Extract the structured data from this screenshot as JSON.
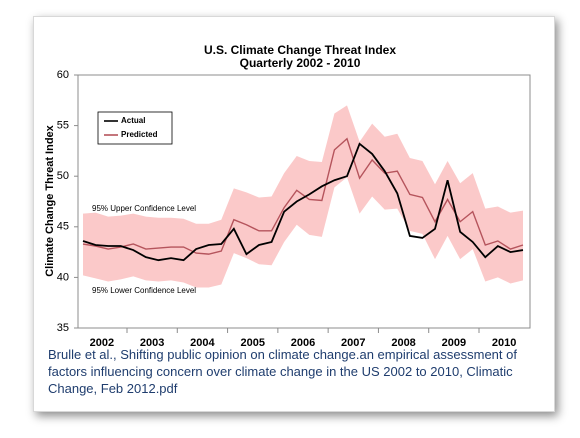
{
  "chart_data": {
    "type": "line",
    "title": "U.S. Climate Change Threat Index",
    "subtitle": "Quarterly 2002 - 2010",
    "y_label": "Climate Change Threat Index",
    "categories": [
      null,
      "2002",
      null,
      null,
      null,
      "2003",
      null,
      null,
      null,
      "2004",
      null,
      null,
      null,
      "2005",
      null,
      null,
      null,
      "2006",
      null,
      null,
      null,
      "2007",
      null,
      null,
      null,
      "2008",
      null,
      null,
      null,
      "2009",
      null,
      null,
      null,
      "2010",
      null,
      null
    ],
    "series": [
      {
        "name": "Actual",
        "color": "#000000",
        "values": [
          43.6,
          43.2,
          43.1,
          43.1,
          42.7,
          42.0,
          41.7,
          41.9,
          41.7,
          42.8,
          43.2,
          43.3,
          44.8,
          42.3,
          43.2,
          43.5,
          46.5,
          47.5,
          48.2,
          49.0,
          49.6,
          50.0,
          53.2,
          52.2,
          50.5,
          48.3,
          44.1,
          43.9,
          44.8,
          49.6,
          44.5,
          43.5,
          42.0,
          43.1,
          42.5,
          42.7
        ]
      },
      {
        "name": "Predicted",
        "color": "#b5545c",
        "values": [
          43.3,
          43.1,
          42.8,
          43.0,
          43.3,
          42.8,
          42.9,
          43.0,
          43.0,
          42.4,
          42.3,
          42.6,
          45.7,
          45.2,
          44.6,
          44.6,
          46.9,
          48.6,
          47.7,
          47.6,
          52.6,
          53.7,
          49.8,
          51.6,
          50.3,
          50.5,
          48.2,
          47.9,
          45.5,
          47.7,
          45.5,
          46.5,
          43.2,
          43.6,
          42.8,
          43.2
        ]
      }
    ],
    "band": {
      "color": "#fbc9c9",
      "upper": [
        46.3,
        46.4,
        46.0,
        46.1,
        46.3,
        46.0,
        45.9,
        45.9,
        45.8,
        45.3,
        45.3,
        45.7,
        48.8,
        48.4,
        47.9,
        48.0,
        50.3,
        52.0,
        51.5,
        51.4,
        56.2,
        57.0,
        53.4,
        55.2,
        53.9,
        54.2,
        51.8,
        51.5,
        49.2,
        51.5,
        49.3,
        50.3,
        46.8,
        47.0,
        46.4,
        46.6
      ],
      "lower": [
        40.2,
        39.9,
        39.6,
        39.8,
        40.1,
        39.7,
        39.6,
        39.7,
        39.5,
        39.0,
        39.0,
        39.3,
        42.4,
        41.9,
        41.3,
        41.2,
        43.5,
        45.2,
        44.2,
        44.0,
        48.9,
        49.9,
        46.3,
        48.0,
        46.7,
        46.8,
        44.6,
        44.3,
        41.8,
        44.1,
        41.8,
        42.8,
        39.6,
        40.0,
        39.4,
        39.7
      ]
    },
    "annotations": [
      "95% Upper Confidence Level",
      "95% Lower Confidence Level"
    ],
    "ylim": [
      35,
      60
    ],
    "yticks": [
      35,
      40,
      45,
      50,
      55,
      60
    ],
    "legend": "upper left",
    "caption": "Brulle et al., Shifting public opinion on climate change.an empirical assessment of factors influencing concern over climate change in the US 2002 to 2010, Climatic Change, Feb 2012.pdf"
  }
}
